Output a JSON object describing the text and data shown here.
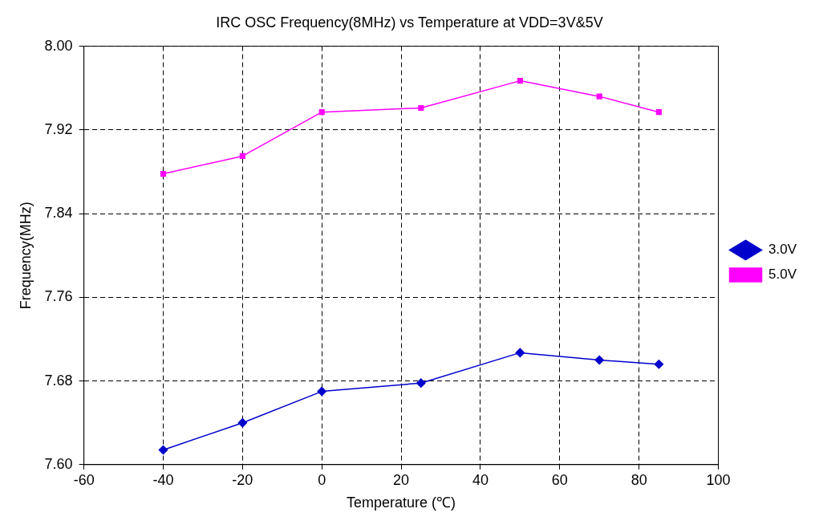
{
  "chart_data": {
    "type": "line",
    "title": "IRC OSC Frequency(8MHz) vs Temperature at VDD=3V&5V",
    "xlabel": "Temperature (℃)",
    "ylabel": "Frequency(MHz)",
    "x": [
      -40,
      -20,
      0,
      25,
      50,
      70,
      85
    ],
    "series": [
      {
        "name": "3.0V",
        "color": "#0000cc",
        "marker": "diamond",
        "values": [
          7.614,
          7.64,
          7.67,
          7.678,
          7.707,
          7.7,
          7.696
        ]
      },
      {
        "name": "5.0V",
        "color": "#ff00ff",
        "marker": "square",
        "values": [
          7.878,
          7.895,
          7.937,
          7.941,
          7.967,
          7.952,
          7.937
        ]
      }
    ],
    "xlim": [
      -60,
      100
    ],
    "xticks": [
      -60,
      -40,
      -20,
      0,
      20,
      40,
      60,
      80,
      100
    ],
    "ylim": [
      7.6,
      8.0
    ],
    "yticks": [
      {
        "value": 7.6,
        "label": "7.60"
      },
      {
        "value": 7.68,
        "label": "7.68"
      },
      {
        "value": 7.76,
        "label": "7.76"
      },
      {
        "value": 7.84,
        "label": "7.84"
      },
      {
        "value": 7.92,
        "label": "7.92"
      },
      {
        "value": 8.0,
        "label": "8.00"
      }
    ],
    "grid": true,
    "legend": "right",
    "line_style": "solid"
  }
}
